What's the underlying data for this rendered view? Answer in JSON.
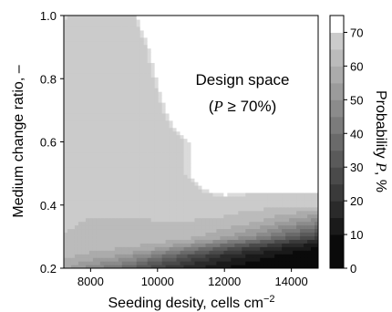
{
  "chart_data": {
    "type": "heatmap",
    "xlabel": "Seeding desity, cells cm",
    "xlabel_sup": "−2",
    "ylabel": "Medium change ratio, –",
    "colorbar_label": "Probability ",
    "colorbar_label_var": "P",
    "colorbar_label_unit": ", %",
    "annotation_line1": "Design space",
    "annotation_line2_open": "(",
    "annotation_line2_var": "P",
    "annotation_line2_rest": " ≥ 70%)",
    "xlim": [
      7200,
      14800
    ],
    "ylim": [
      0.2,
      1.0
    ],
    "x_ticks": [
      8000,
      10000,
      12000,
      14000
    ],
    "x_tick_labels": [
      "8000",
      "10000",
      "12000",
      "14000"
    ],
    "y_ticks": [
      0.2,
      0.4,
      0.6,
      0.8,
      1.0
    ],
    "y_tick_labels": [
      "0.2",
      "0.4",
      "0.6",
      "0.8",
      "1.0"
    ],
    "colorbar_range": [
      0,
      75
    ],
    "colorbar_ticks": [
      0,
      10,
      20,
      30,
      40,
      50,
      60,
      70
    ],
    "colorbar_tick_labels": [
      "0",
      "10",
      "20",
      "30",
      "40",
      "50",
      "60",
      "70"
    ],
    "x": [
      7200,
      8000,
      9000,
      10000,
      11000,
      12000,
      13000,
      14000,
      14800
    ],
    "y": [
      0.2,
      0.22,
      0.24,
      0.26,
      0.28,
      0.3,
      0.35,
      0.4,
      0.5,
      0.6,
      0.7,
      0.8,
      0.9,
      1.0
    ],
    "z": [
      [
        55,
        45,
        35,
        22,
        12,
        5,
        2,
        0,
        0
      ],
      [
        58,
        52,
        43,
        30,
        18,
        9,
        4,
        1,
        0
      ],
      [
        60,
        57,
        52,
        40,
        26,
        15,
        8,
        3,
        1
      ],
      [
        62,
        60,
        58,
        52,
        38,
        25,
        15,
        7,
        3
      ],
      [
        63,
        62,
        61,
        60,
        52,
        40,
        28,
        16,
        9
      ],
      [
        64,
        63,
        63,
        62,
        60,
        55,
        45,
        32,
        22
      ],
      [
        65,
        64,
        64,
        64,
        64,
        63,
        60,
        52,
        45
      ],
      [
        66,
        65,
        65,
        68,
        68,
        67,
        66,
        66,
        66
      ],
      [
        66,
        66,
        67,
        68,
        70,
        76,
        76,
        76,
        76
      ],
      [
        66,
        66,
        67,
        68,
        70,
        76,
        76,
        76,
        76
      ],
      [
        66,
        66,
        67,
        69,
        73,
        76,
        76,
        76,
        76
      ],
      [
        67,
        66,
        67,
        70,
        75,
        76,
        76,
        76,
        76
      ],
      [
        68,
        66,
        67,
        71,
        76,
        76,
        76,
        76,
        76
      ],
      [
        70,
        67,
        68,
        73,
        76,
        76,
        76,
        76,
        76
      ]
    ]
  }
}
